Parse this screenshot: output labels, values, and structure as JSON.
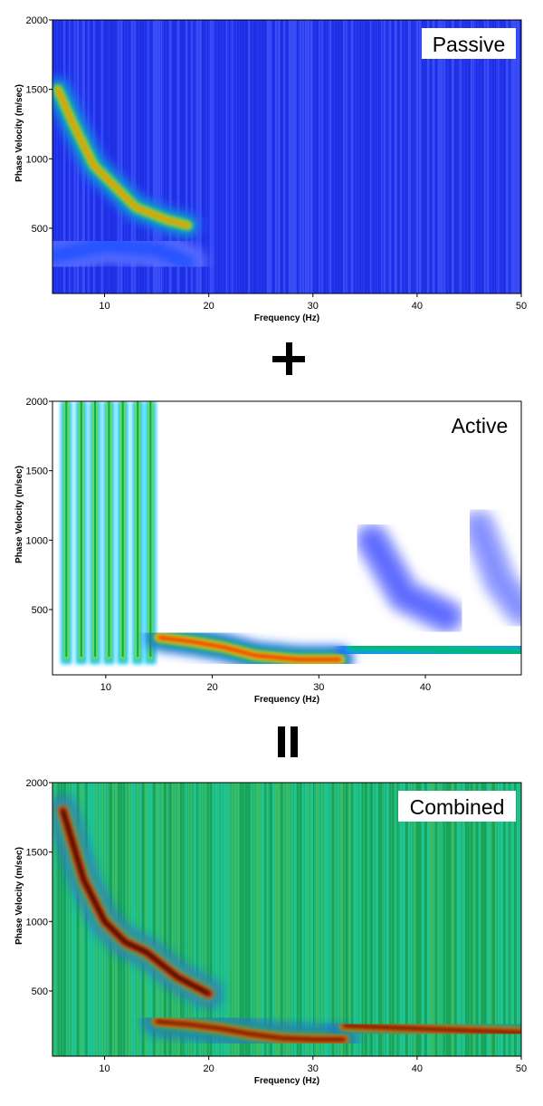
{
  "chart_data": [
    {
      "type": "heatmap",
      "panel_label": "Passive",
      "xlabel": "Frequency (Hz)",
      "ylabel": "Phase Velocity (m/sec)",
      "xlim": [
        5,
        50
      ],
      "ylim": [
        30,
        2000
      ],
      "xticks": [
        10,
        20,
        30,
        40,
        50
      ],
      "yticks": [
        500,
        1000,
        1500,
        2000
      ],
      "colormap": [
        "#ffffff",
        "#2a3cff",
        "#00c8ff",
        "#00b050",
        "#ffff00",
        "#ff0000",
        "#000000"
      ],
      "background_color": "#2838f0",
      "features": [
        {
          "kind": "dispersion-curve",
          "points": [
            [
              5.5,
              1500
            ],
            [
              7,
              1250
            ],
            [
              9,
              950
            ],
            [
              11,
              800
            ],
            [
              13,
              650
            ],
            [
              16,
              560
            ],
            [
              18,
              520
            ]
          ],
          "peak": 0.75
        },
        {
          "kind": "low-velocity-band",
          "points": [
            [
              5,
              300
            ],
            [
              10,
              380
            ],
            [
              15,
              350
            ],
            [
              18,
              250
            ]
          ],
          "peak": 0.12
        }
      ]
    },
    {
      "type": "heatmap",
      "panel_label": "Active",
      "xlabel": "Frequency (Hz)",
      "ylabel": "Phase Velocity (m/sec)",
      "xlim": [
        5,
        49
      ],
      "ylim": [
        30,
        2000
      ],
      "xticks": [
        10,
        20,
        30,
        40
      ],
      "yticks": [
        500,
        1000,
        1500,
        2000
      ],
      "colormap": [
        "#ffffff",
        "#2a3cff",
        "#00c8ff",
        "#00b050",
        "#ffff00",
        "#ff0000",
        "#000000"
      ],
      "background_color": "#ffffff",
      "features": [
        {
          "kind": "vertical-lobes",
          "frequencies": [
            6.3,
            7.7,
            9.0,
            10.3,
            11.6,
            13.0,
            14.2
          ],
          "peak": 0.6
        },
        {
          "kind": "dispersion-curve",
          "points": [
            [
              15,
              300
            ],
            [
              18,
              270
            ],
            [
              21,
              230
            ],
            [
              24,
              170
            ],
            [
              28,
              140
            ],
            [
              32,
              140
            ]
          ],
          "peak": 0.85
        },
        {
          "kind": "dispersion-curve",
          "points": [
            [
              33,
              230
            ],
            [
              38,
              225
            ],
            [
              43,
              210
            ],
            [
              49,
              190
            ]
          ],
          "peak": 0.5
        },
        {
          "kind": "faint-lobe",
          "points": [
            [
              35,
              1000
            ],
            [
              38,
              600
            ],
            [
              42,
              450
            ]
          ],
          "peak": 0.08
        },
        {
          "kind": "faint-lobe",
          "points": [
            [
              45,
              1100
            ],
            [
              47,
              700
            ],
            [
              49,
              500
            ]
          ],
          "peak": 0.06
        }
      ]
    },
    {
      "type": "heatmap",
      "panel_label": "Combined",
      "xlabel": "Frequency (Hz)",
      "ylabel": "Phase Velocity (m/sec)",
      "xlim": [
        5,
        50
      ],
      "ylim": [
        30,
        2000
      ],
      "xticks": [
        10,
        20,
        30,
        40,
        50
      ],
      "yticks": [
        500,
        1000,
        1500,
        2000
      ],
      "colormap": [
        "#ffffff",
        "#2a3cff",
        "#00c8ff",
        "#00b050",
        "#ffff00",
        "#ff0000",
        "#000000"
      ],
      "background_color": "#22b46e",
      "features": [
        {
          "kind": "dispersion-curve",
          "points": [
            [
              6,
              1800
            ],
            [
              8,
              1300
            ],
            [
              10,
              1000
            ],
            [
              12,
              850
            ],
            [
              14,
              780
            ],
            [
              17,
              600
            ],
            [
              20,
              480
            ]
          ],
          "peak": 1.0
        },
        {
          "kind": "dispersion-curve",
          "points": [
            [
              15,
              280
            ],
            [
              18,
              260
            ],
            [
              21,
              230
            ],
            [
              24,
              190
            ],
            [
              27,
              160
            ],
            [
              30,
              150
            ],
            [
              33,
              150
            ]
          ],
          "peak": 0.95
        },
        {
          "kind": "dispersion-curve",
          "points": [
            [
              33,
              250
            ],
            [
              38,
              235
            ],
            [
              43,
              220
            ],
            [
              50,
              200
            ]
          ],
          "peak": 0.95
        }
      ]
    }
  ],
  "operators": {
    "plus": "+",
    "equals": "="
  },
  "panels": [
    {
      "label": "Passive",
      "xlabel": "Frequency (Hz)",
      "ylabel": "Phase Velocity (m/sec)",
      "xticks": [
        "10",
        "20",
        "30",
        "40",
        "50"
      ],
      "yticks": [
        "500",
        "1000",
        "1500",
        "2000"
      ]
    },
    {
      "label": "Active",
      "xlabel": "Frequency (Hz)",
      "ylabel": "Phase Velocity (m/sec)",
      "xticks": [
        "10",
        "20",
        "30",
        "40"
      ],
      "yticks": [
        "500",
        "1000",
        "1500",
        "2000"
      ]
    },
    {
      "label": "Combined",
      "xlabel": "Frequency (Hz)",
      "ylabel": "Phase Velocity (m/sec)",
      "xticks": [
        "10",
        "20",
        "30",
        "40",
        "50"
      ],
      "yticks": [
        "500",
        "1000",
        "1500",
        "2000"
      ]
    }
  ]
}
